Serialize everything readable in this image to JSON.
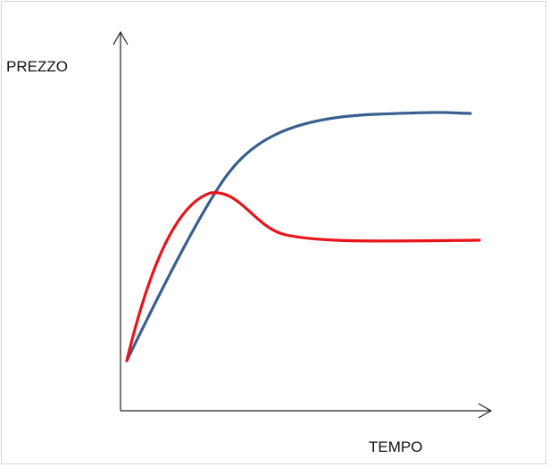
{
  "chart_data": {
    "type": "line",
    "title": "",
    "xlabel": "TEMPO",
    "ylabel": "PREZZO",
    "grid": false,
    "legend": "none",
    "x_ticks": [],
    "y_ticks": [],
    "series": [
      {
        "color": "#3a5f8f",
        "description_points": [
          [
            0.0,
            0.1
          ],
          [
            0.9,
            0.6
          ],
          [
            1.5,
            0.92
          ],
          [
            2.0,
            1.0
          ],
          [
            4.0,
            1.14
          ],
          [
            6.0,
            1.18
          ]
        ]
      },
      {
        "color": "#e8141a",
        "description_points": [
          [
            0.0,
            0.1
          ],
          [
            0.8,
            0.6
          ],
          [
            1.4,
            0.98
          ],
          [
            1.8,
            1.0
          ],
          [
            2.6,
            0.9
          ],
          [
            3.2,
            0.78
          ],
          [
            4.5,
            0.74
          ],
          [
            6.0,
            0.76
          ]
        ]
      }
    ]
  }
}
